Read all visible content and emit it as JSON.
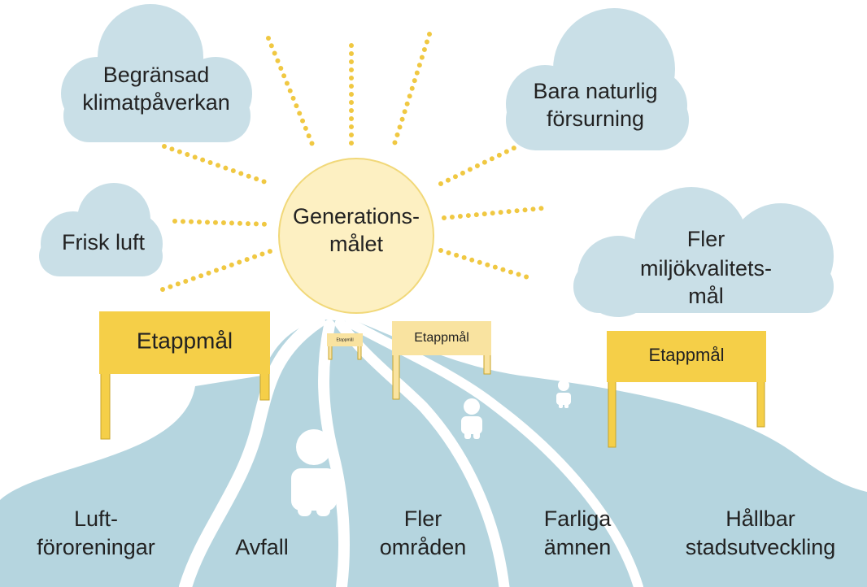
{
  "sun": {
    "lines": [
      "Generations-",
      "målet"
    ]
  },
  "clouds": [
    {
      "lines": [
        "Begränsad",
        "klimatpåverkan"
      ]
    },
    {
      "lines": [
        "Bara naturlig",
        "försurning"
      ]
    },
    {
      "lines": [
        "Frisk luft"
      ]
    },
    {
      "lines": [
        "Fler",
        "miljökvalitets-",
        "mål"
      ]
    }
  ],
  "signs": [
    "Etappmål",
    "Etappmål",
    "Etappmål",
    "Etappmål"
  ],
  "roads": [
    {
      "lines": [
        "Luft-",
        "föroreningar"
      ]
    },
    {
      "lines": [
        "Avfall"
      ]
    },
    {
      "lines": [
        "Fler",
        "områden"
      ]
    },
    {
      "lines": [
        "Farliga",
        "ämnen"
      ]
    },
    {
      "lines": [
        "Hållbar",
        "stadsutveckling"
      ]
    }
  ]
}
